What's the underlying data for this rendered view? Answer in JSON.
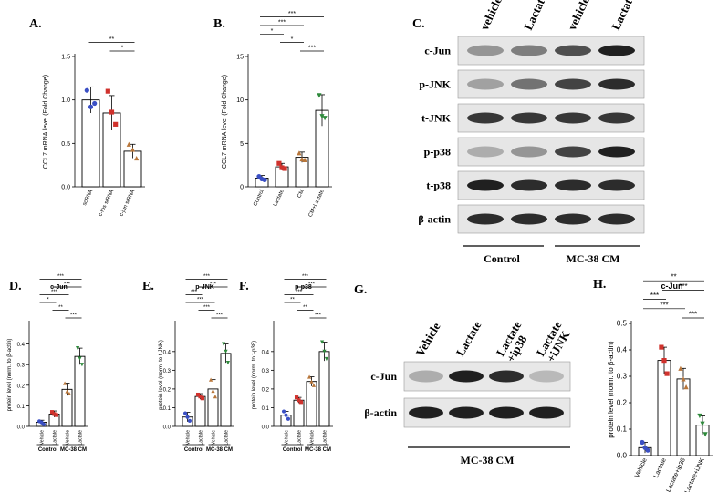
{
  "panel_letters": [
    "A.",
    "B.",
    "C.",
    "D.",
    "E.",
    "F.",
    "G.",
    "H."
  ],
  "colors": {
    "blue": "#3a4fc4",
    "red": "#d0322d",
    "brown": "#b8763a",
    "green": "#2f8a3c",
    "bar_stroke": "#000000",
    "bar_fill": "#ffffff"
  },
  "chart_data": [
    {
      "panel": "A.",
      "type": "bar",
      "title": "",
      "ylabel": "CCL7 mRNA level (Fold Change)",
      "categories": [
        "scRNA",
        "c-fos siRNA",
        "c-jun siRNA"
      ],
      "values": [
        1.0,
        0.85,
        0.41
      ],
      "errors": [
        0.15,
        0.2,
        0.08
      ],
      "points": [
        [
          1.11,
          0.92,
          0.96
        ],
        [
          1.1,
          0.86,
          0.72
        ],
        [
          0.49,
          0.43,
          0.33
        ]
      ],
      "point_colors": [
        "blue",
        "red",
        "brown"
      ],
      "ylim": [
        0,
        1.5
      ],
      "yticks": [
        "0.0",
        "0.5",
        "1.0",
        "1.5"
      ],
      "significance": [
        {
          "a": 0,
          "b": 2,
          "label": "**"
        },
        {
          "a": 1,
          "b": 2,
          "label": "*"
        }
      ]
    },
    {
      "panel": "B.",
      "type": "bar",
      "title": "",
      "ylabel": "CCL7 mRNA level (Fold Change)",
      "categories": [
        "Control",
        "Lactate",
        "CM",
        "CM+Lactate"
      ],
      "values": [
        1.0,
        2.3,
        3.4,
        8.8
      ],
      "errors": [
        0.3,
        0.4,
        0.6,
        1.8
      ],
      "points": [
        [
          1.2,
          0.9,
          0.8
        ],
        [
          2.7,
          2.2,
          2.1
        ],
        [
          3.9,
          3.2,
          3.1
        ],
        [
          10.5,
          8.1,
          7.9
        ]
      ],
      "point_colors": [
        "blue",
        "red",
        "brown",
        "green"
      ],
      "ylim": [
        0,
        15
      ],
      "yticks": [
        "0",
        "5",
        "10",
        "15"
      ],
      "significance": [
        {
          "a": 0,
          "b": 3,
          "label": "***"
        },
        {
          "a": 0,
          "b": 2,
          "label": "***"
        },
        {
          "a": 0,
          "b": 1,
          "label": "*"
        },
        {
          "a": 1,
          "b": 2,
          "label": "*"
        },
        {
          "a": 2,
          "b": 3,
          "label": "***"
        }
      ]
    },
    {
      "panel": "D.",
      "type": "bar",
      "title": "c-Jun",
      "ylabel": "protein level (norm. to β-actin)",
      "categories": [
        "Vehicle",
        "Lactate",
        "Vehicle",
        "Lactate"
      ],
      "group_labels": [
        "Control",
        "MC-38 CM"
      ],
      "values": [
        0.02,
        0.06,
        0.18,
        0.34
      ],
      "errors": [
        0.01,
        0.015,
        0.03,
        0.04
      ],
      "points": [
        [
          0.025,
          0.02,
          0.01
        ],
        [
          0.07,
          0.06,
          0.055
        ],
        [
          0.21,
          0.17,
          0.16
        ],
        [
          0.38,
          0.33,
          0.3
        ]
      ],
      "point_colors": [
        "blue",
        "red",
        "brown",
        "green"
      ],
      "ylim": [
        0,
        0.5
      ],
      "yticks": [
        "0.0",
        "0.1",
        "0.2",
        "0.3",
        "0.4"
      ],
      "significance": [
        {
          "a": 0,
          "b": 3,
          "label": "***"
        },
        {
          "a": 1,
          "b": 3,
          "label": "***"
        },
        {
          "a": 0,
          "b": 2,
          "label": "***"
        },
        {
          "a": 0,
          "b": 1,
          "label": "*"
        },
        {
          "a": 1,
          "b": 2,
          "label": "**"
        },
        {
          "a": 2,
          "b": 3,
          "label": "***"
        }
      ]
    },
    {
      "panel": "E.",
      "type": "bar",
      "title": "p-JNK",
      "ylabel": "protein level (norm. to t-JNK)",
      "categories": [
        "Vehicle",
        "Lactate",
        "Vehicle",
        "Lactate"
      ],
      "group_labels": [
        "Control",
        "MC-38 CM"
      ],
      "values": [
        0.05,
        0.16,
        0.2,
        0.39
      ],
      "errors": [
        0.025,
        0.015,
        0.05,
        0.05
      ],
      "points": [
        [
          0.07,
          0.05,
          0.03
        ],
        [
          0.17,
          0.16,
          0.15
        ],
        [
          0.25,
          0.19,
          0.16
        ],
        [
          0.44,
          0.4,
          0.34
        ]
      ],
      "point_colors": [
        "blue",
        "red",
        "brown",
        "green"
      ],
      "ylim": [
        0,
        0.55
      ],
      "yticks": [
        "0.0",
        "0.1",
        "0.2",
        "0.3",
        "0.4"
      ],
      "significance": [
        {
          "a": 0,
          "b": 3,
          "label": "***"
        },
        {
          "a": 1,
          "b": 3,
          "label": "***"
        },
        {
          "a": 0,
          "b": 1,
          "label": "***"
        },
        {
          "a": 0,
          "b": 2,
          "label": "***"
        },
        {
          "a": 1,
          "b": 2,
          "label": "***"
        },
        {
          "a": 2,
          "b": 3,
          "label": "***"
        }
      ]
    },
    {
      "panel": "F.",
      "type": "bar",
      "title": "p-p38",
      "ylabel": "protein level (norm. to t-p38)",
      "categories": [
        "Vehicle",
        "Lactate",
        "Vehicle",
        "Lactate"
      ],
      "group_labels": [
        "Control",
        "MC-38 CM"
      ],
      "values": [
        0.06,
        0.14,
        0.24,
        0.4
      ],
      "errors": [
        0.02,
        0.015,
        0.025,
        0.05
      ],
      "points": [
        [
          0.08,
          0.06,
          0.04
        ],
        [
          0.155,
          0.14,
          0.13
        ],
        [
          0.265,
          0.24,
          0.22
        ],
        [
          0.45,
          0.4,
          0.36
        ]
      ],
      "point_colors": [
        "blue",
        "red",
        "brown",
        "green"
      ],
      "ylim": [
        0,
        0.55
      ],
      "yticks": [
        "0.0",
        "0.1",
        "0.2",
        "0.3",
        "0.4"
      ],
      "significance": [
        {
          "a": 0,
          "b": 3,
          "label": "***"
        },
        {
          "a": 1,
          "b": 3,
          "label": "***"
        },
        {
          "a": 0,
          "b": 2,
          "label": "***"
        },
        {
          "a": 0,
          "b": 1,
          "label": "**"
        },
        {
          "a": 1,
          "b": 2,
          "label": "**"
        },
        {
          "a": 2,
          "b": 3,
          "label": "***"
        }
      ]
    },
    {
      "panel": "H.",
      "type": "bar",
      "title": "c-Jun",
      "ylabel": "protein level (norm. to β-actin)",
      "categories": [
        "Vehicle",
        "Lactate",
        "Lactate+ip38",
        "Lactate+iJNK"
      ],
      "values": [
        0.03,
        0.36,
        0.29,
        0.115
      ],
      "errors": [
        0.02,
        0.05,
        0.04,
        0.035
      ],
      "points": [
        [
          0.05,
          0.03,
          0.02
        ],
        [
          0.41,
          0.36,
          0.31
        ],
        [
          0.33,
          0.29,
          0.26
        ],
        [
          0.15,
          0.12,
          0.08
        ]
      ],
      "point_colors": [
        "blue",
        "red",
        "brown",
        "green"
      ],
      "ylim": [
        0,
        0.5
      ],
      "yticks": [
        "0.0",
        "0.1",
        "0.2",
        "0.3",
        "0.4",
        "0.5"
      ],
      "significance": [
        {
          "a": 0,
          "b": 3,
          "label": "**"
        },
        {
          "a": 1,
          "b": 3,
          "label": "***"
        },
        {
          "a": 0,
          "b": 1,
          "label": "***"
        },
        {
          "a": 0,
          "b": 2,
          "label": "***"
        },
        {
          "a": 2,
          "b": 3,
          "label": "***"
        }
      ]
    }
  ],
  "blot_C": {
    "lanes": [
      "vehicle",
      "Lactate",
      "vehicle",
      "Lactate"
    ],
    "rows": [
      {
        "label": "c-Jun",
        "intensity": [
          0.45,
          0.55,
          0.75,
          0.95
        ]
      },
      {
        "label": "p-JNK",
        "intensity": [
          0.4,
          0.6,
          0.8,
          0.9
        ]
      },
      {
        "label": "t-JNK",
        "intensity": [
          0.85,
          0.85,
          0.85,
          0.85
        ]
      },
      {
        "label": "p-p38",
        "intensity": [
          0.35,
          0.45,
          0.8,
          0.95
        ]
      },
      {
        "label": "t-p38",
        "intensity": [
          0.95,
          0.9,
          0.9,
          0.9
        ]
      },
      {
        "label": "β-actin",
        "intensity": [
          0.9,
          0.9,
          0.9,
          0.9
        ]
      }
    ],
    "groups": [
      "Control",
      "MC-38 CM"
    ]
  },
  "blot_G": {
    "lanes": [
      "Vehicle",
      "Lactate",
      "Lactate\n+ip38",
      "Lactate\n+iJNK"
    ],
    "rows": [
      {
        "label": "c-Jun",
        "intensity": [
          0.35,
          0.95,
          0.9,
          0.3
        ]
      },
      {
        "label": "β-actin",
        "intensity": [
          0.95,
          0.95,
          0.95,
          0.95
        ]
      }
    ],
    "group": "MC-38 CM"
  }
}
